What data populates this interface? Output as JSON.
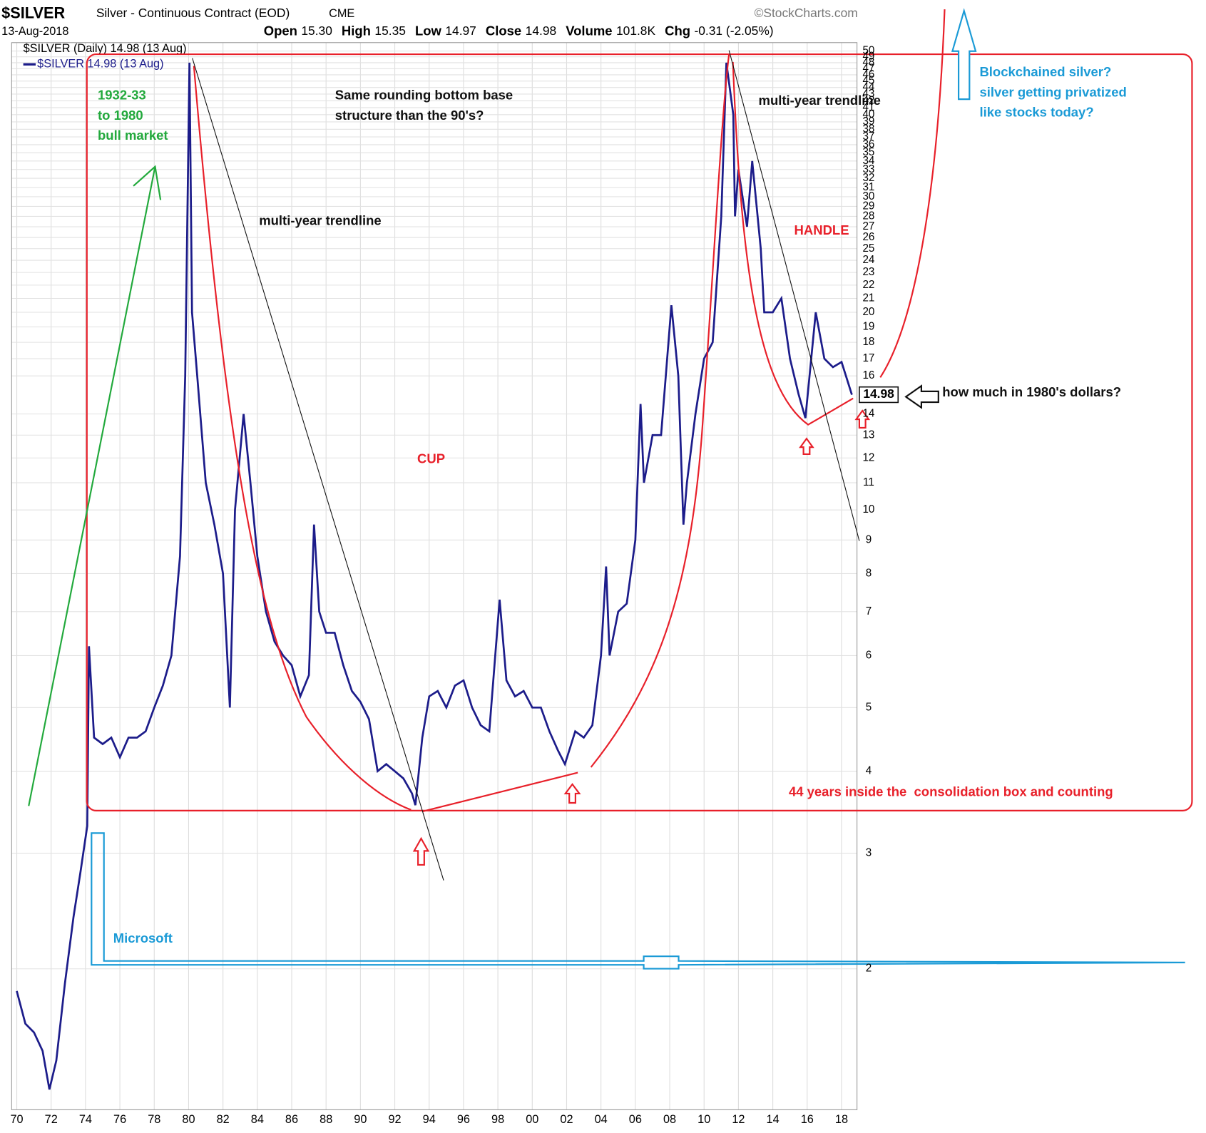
{
  "chart_data": {
    "type": "line",
    "title": "$SILVER",
    "subtitle": "Silver - Continuous Contract (EOD)",
    "exchange": "CME",
    "source": "©StockCharts.com",
    "date": "13-Aug-2018",
    "quote": [
      {
        "label": "Open",
        "value": "15.30"
      },
      {
        "label": "High",
        "value": "15.35"
      },
      {
        "label": "Low",
        "value": "14.97"
      },
      {
        "label": "Close",
        "value": "14.98"
      },
      {
        "label": "Volume",
        "value": "101.8K"
      },
      {
        "label": "Chg",
        "value": "-0.31 (-2.05%)"
      }
    ],
    "legend_title": "$SILVER (Daily) 14.98 (13 Aug)",
    "log_scale": true,
    "grid": true,
    "xlim": [
      1969.7,
      2018.9
    ],
    "ylim": [
      1.22,
      51.5
    ],
    "xticks": [
      {
        "value": 1970,
        "label": "70"
      },
      {
        "value": 1972,
        "label": "72"
      },
      {
        "value": 1974,
        "label": "74"
      },
      {
        "value": 1976,
        "label": "76"
      },
      {
        "value": 1978,
        "label": "78"
      },
      {
        "value": 1980,
        "label": "80"
      },
      {
        "value": 1982,
        "label": "82"
      },
      {
        "value": 1984,
        "label": "84"
      },
      {
        "value": 1986,
        "label": "86"
      },
      {
        "value": 1988,
        "label": "88"
      },
      {
        "value": 1990,
        "label": "90"
      },
      {
        "value": 1992,
        "label": "92"
      },
      {
        "value": 1994,
        "label": "94"
      },
      {
        "value": 1996,
        "label": "96"
      },
      {
        "value": 1998,
        "label": "98"
      },
      {
        "value": 2000,
        "label": "00"
      },
      {
        "value": 2002,
        "label": "02"
      },
      {
        "value": 2004,
        "label": "04"
      },
      {
        "value": 2006,
        "label": "06"
      },
      {
        "value": 2008,
        "label": "08"
      },
      {
        "value": 2010,
        "label": "10"
      },
      {
        "value": 2012,
        "label": "12"
      },
      {
        "value": 2014,
        "label": "14"
      },
      {
        "value": 2016,
        "label": "16"
      },
      {
        "value": 2018,
        "label": "18"
      }
    ],
    "yticks": [
      2,
      3,
      4,
      5,
      6,
      7,
      8,
      9,
      10,
      11,
      12,
      13,
      14,
      16,
      17,
      18,
      19,
      20,
      21,
      22,
      23,
      24,
      25,
      26,
      27,
      28,
      29,
      30,
      31,
      32,
      33,
      34,
      35,
      36,
      37,
      38,
      39,
      40,
      41,
      42,
      43,
      44,
      45,
      46,
      47,
      48,
      49,
      50
    ],
    "series": [
      {
        "name": "$SILVER 14.98 (13 Aug)",
        "color": "#1c1c8a",
        "x": [
          1970.0,
          1970.5,
          1971.0,
          1971.5,
          1971.9,
          1972.3,
          1972.8,
          1973.3,
          1973.7,
          1974.1,
          1974.2,
          1974.5,
          1975.0,
          1975.5,
          1976.0,
          1976.5,
          1977.0,
          1977.5,
          1978.0,
          1978.5,
          1979.0,
          1979.5,
          1979.8,
          1980.05,
          1980.2,
          1980.5,
          1981.0,
          1981.5,
          1982.0,
          1982.4,
          1982.7,
          1983.2,
          1983.6,
          1984.0,
          1984.5,
          1985.0,
          1985.5,
          1986.0,
          1986.5,
          1987.0,
          1987.3,
          1987.6,
          1988.0,
          1988.5,
          1989.0,
          1989.5,
          1990.0,
          1990.5,
          1991.0,
          1991.5,
          1992.0,
          1992.5,
          1993.0,
          1993.2,
          1993.6,
          1994.0,
          1994.5,
          1995.0,
          1995.5,
          1996.0,
          1996.5,
          1997.0,
          1997.5,
          1998.1,
          1998.5,
          1999.0,
          1999.5,
          2000.0,
          2000.5,
          2001.0,
          2001.5,
          2001.9,
          2002.5,
          2003.0,
          2003.5,
          2004.0,
          2004.3,
          2004.5,
          2005.0,
          2005.5,
          2006.0,
          2006.3,
          2006.5,
          2007.0,
          2007.5,
          2008.1,
          2008.5,
          2008.8,
          2009.0,
          2009.5,
          2010.0,
          2010.5,
          2011.0,
          2011.3,
          2011.7,
          2011.8,
          2012.0,
          2012.5,
          2012.8,
          2013.3,
          2013.5,
          2014.0,
          2014.5,
          2015.0,
          2015.5,
          2015.9,
          2016.5,
          2017.0,
          2017.5,
          2018.0,
          2018.6
        ],
        "values": [
          1.85,
          1.65,
          1.6,
          1.5,
          1.31,
          1.45,
          1.9,
          2.4,
          2.8,
          3.3,
          6.2,
          4.5,
          4.4,
          4.5,
          4.2,
          4.5,
          4.5,
          4.6,
          5.0,
          5.4,
          6.0,
          8.5,
          16,
          48,
          20,
          16,
          11,
          9.5,
          8,
          5.0,
          10,
          14,
          11,
          8.5,
          7.0,
          6.3,
          6.0,
          5.8,
          5.2,
          5.6,
          9.5,
          7.0,
          6.5,
          6.5,
          5.8,
          5.3,
          5.1,
          4.8,
          4.0,
          4.1,
          4.0,
          3.9,
          3.7,
          3.55,
          4.5,
          5.2,
          5.3,
          5.0,
          5.4,
          5.5,
          5.0,
          4.7,
          4.6,
          7.3,
          5.5,
          5.2,
          5.3,
          5.0,
          5.0,
          4.6,
          4.3,
          4.1,
          4.6,
          4.5,
          4.7,
          6.0,
          8.2,
          6.0,
          7.0,
          7.2,
          9.0,
          14.5,
          11,
          13,
          13,
          20.5,
          16,
          9.5,
          11,
          14,
          17,
          18,
          28,
          48,
          40,
          28,
          33,
          27,
          34,
          25,
          20,
          20,
          21,
          17,
          15,
          13.8,
          20,
          17,
          16.5,
          16.8,
          14.98
        ]
      }
    ],
    "last_value": {
      "value": 14.98,
      "label": "14.98"
    },
    "annotations": [
      {
        "text": "1932-33",
        "color": "#22a93c"
      },
      {
        "text": "to 1980",
        "color": "#22a93c"
      },
      {
        "text": "bull market",
        "color": "#22a93c"
      },
      {
        "text": "Same rounding bottom base",
        "color": "#111111"
      },
      {
        "text": "structure than the 90's?",
        "color": "#111111"
      },
      {
        "text": "multi-year trendline",
        "color": "#111111"
      },
      {
        "text": "multi-year trendline",
        "color": "#111111"
      },
      {
        "text": "CUP",
        "color": "#e8202a"
      },
      {
        "text": "HANDLE",
        "color": "#e8202a"
      },
      {
        "text": "Blockchained silver?",
        "color": "#1a9ad6"
      },
      {
        "text": "silver getting privatized",
        "color": "#1a9ad6"
      },
      {
        "text": "like stocks today?",
        "color": "#1a9ad6"
      },
      {
        "text": "how much in 1980's dollars?",
        "color": "#111111"
      },
      {
        "text": "44 years inside the  consolidation box and counting",
        "color": "#e8202a"
      },
      {
        "text": "Microsoft",
        "color": "#1a9ad6"
      }
    ]
  }
}
